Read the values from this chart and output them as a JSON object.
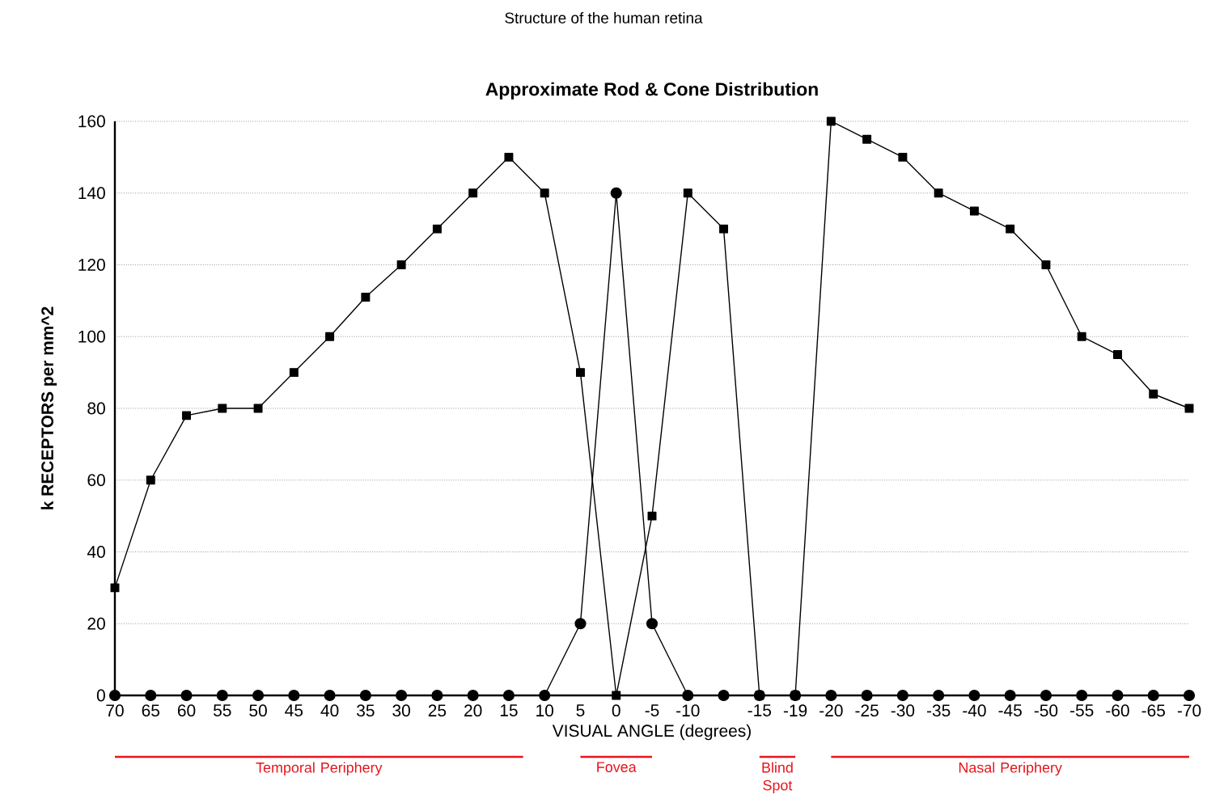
{
  "chart_data": {
    "type": "line",
    "title": "Approximate Rod & Cone Distribution",
    "xlabel": "VISUAL ANGLE (degrees)",
    "ylabel": "k RECEPTORS per mm^2",
    "annotations": [
      "Structure of the human retina",
      "Temporal Periphery",
      "Fovea",
      "Blind Spot",
      "Nasal Periphery"
    ],
    "categories": [
      "70",
      "65",
      "60",
      "55",
      "50",
      "45",
      "40",
      "35",
      "30",
      "25",
      "20",
      "15",
      "10",
      "5",
      "0",
      "-5",
      "-10",
      null,
      "-15",
      "-19",
      "-20",
      "-25",
      "-30",
      "-35",
      "-40",
      "-45",
      "-50",
      "-55",
      "-60",
      "-65",
      "-70"
    ],
    "series": [
      {
        "color": "#000000",
        "marker": "square",
        "values": [
          30,
          60,
          78,
          80,
          80,
          90,
          100,
          111,
          120,
          130,
          140,
          150,
          140,
          90,
          0,
          50,
          140,
          130,
          0,
          0,
          160,
          155,
          150,
          140,
          135,
          130,
          120,
          100,
          95,
          84,
          80
        ]
      },
      {
        "color": "#000000",
        "marker": "circle",
        "values": [
          0,
          0,
          0,
          0,
          0,
          0,
          0,
          0,
          0,
          0,
          0,
          0,
          0,
          20,
          140,
          20,
          0,
          0,
          0,
          0,
          0,
          0,
          0,
          0,
          0,
          0,
          0,
          0,
          0,
          0,
          0
        ]
      }
    ],
    "ylim": [
      0,
      160
    ],
    "yticks": [
      0,
      20,
      40,
      60,
      80,
      100,
      120,
      140,
      160
    ],
    "grid": "y"
  }
}
